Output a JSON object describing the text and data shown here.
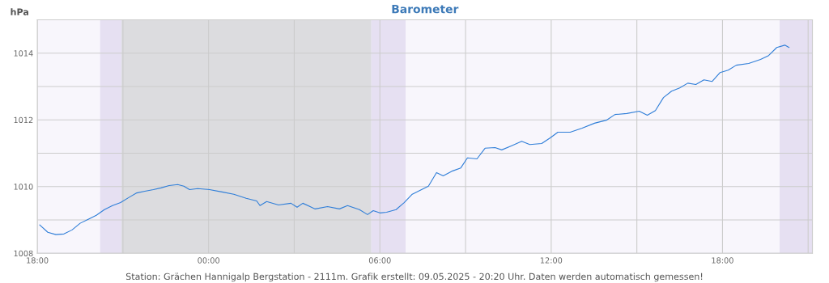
{
  "chart_data": {
    "type": "line",
    "title": "Barometer",
    "ylabel": "hPa",
    "annotations": [
      "Station: Grächen Hannigalp Bergstation - 2111m. Grafik erstellt: 09.05.2025 - 20:20 Uhr. Daten werden automatisch gemessen!"
    ],
    "x": [
      "2025-05-08T18:05",
      "2025-05-08T18:22",
      "2025-05-08T18:39",
      "2025-05-08T18:56",
      "2025-05-08T19:13",
      "2025-05-08T19:30",
      "2025-05-08T19:47",
      "2025-05-08T20:04",
      "2025-05-08T20:21",
      "2025-05-08T20:38",
      "2025-05-08T20:55",
      "2025-05-08T21:12",
      "2025-05-08T21:29",
      "2025-05-08T21:46",
      "2025-05-08T22:04",
      "2025-05-08T22:20",
      "2025-05-08T22:37",
      "2025-05-08T22:55",
      "2025-05-08T23:08",
      "2025-05-08T23:20",
      "2025-05-08T23:37",
      "2025-05-09T00:02",
      "2025-05-09T00:28",
      "2025-05-09T00:53",
      "2025-05-09T01:19",
      "2025-05-09T01:41",
      "2025-05-09T01:48",
      "2025-05-09T02:02",
      "2025-05-09T02:27",
      "2025-05-09T02:53",
      "2025-05-09T03:06",
      "2025-05-09T03:18",
      "2025-05-09T03:44",
      "2025-05-09T04:10",
      "2025-05-09T04:35",
      "2025-05-09T04:52",
      "2025-05-09T05:17",
      "2025-05-09T05:34",
      "2025-05-09T05:46",
      "2025-05-09T06:00",
      "2025-05-09T06:14",
      "2025-05-09T06:34",
      "2025-05-09T06:51",
      "2025-05-09T07:08",
      "2025-05-09T07:25",
      "2025-05-09T07:42",
      "2025-05-09T07:59",
      "2025-05-09T08:13",
      "2025-05-09T08:33",
      "2025-05-09T08:50",
      "2025-05-09T09:04",
      "2025-05-09T09:24",
      "2025-05-09T09:41",
      "2025-05-09T10:02",
      "2025-05-09T10:16",
      "2025-05-09T10:36",
      "2025-05-09T10:58",
      "2025-05-09T11:15",
      "2025-05-09T11:40",
      "2025-05-09T11:58",
      "2025-05-09T12:14",
      "2025-05-09T12:40",
      "2025-05-09T13:05",
      "2025-05-09T13:31",
      "2025-05-09T13:56",
      "2025-05-09T14:14",
      "2025-05-09T14:39",
      "2025-05-09T15:05",
      "2025-05-09T15:22",
      "2025-05-09T15:39",
      "2025-05-09T15:56",
      "2025-05-09T16:13",
      "2025-05-09T16:30",
      "2025-05-09T16:47",
      "2025-05-09T17:04",
      "2025-05-09T17:21",
      "2025-05-09T17:38",
      "2025-05-09T17:55",
      "2025-05-09T18:12",
      "2025-05-09T18:29",
      "2025-05-09T18:55",
      "2025-05-09T19:20",
      "2025-05-09T19:37",
      "2025-05-09T19:54",
      "2025-05-09T20:11",
      "2025-05-09T20:20"
    ],
    "series": [
      {
        "color": "#2f7ed8",
        "values": [
          1008.85,
          1008.63,
          1008.56,
          1008.58,
          1008.7,
          1008.9,
          1009.02,
          1009.14,
          1009.31,
          1009.43,
          1009.52,
          1009.67,
          1009.81,
          1009.86,
          1009.91,
          1009.96,
          1010.03,
          1010.06,
          1010.01,
          1009.91,
          1009.94,
          1009.91,
          1009.84,
          1009.77,
          1009.65,
          1009.57,
          1009.43,
          1009.55,
          1009.45,
          1009.5,
          1009.38,
          1009.5,
          1009.33,
          1009.4,
          1009.33,
          1009.43,
          1009.31,
          1009.16,
          1009.28,
          1009.21,
          1009.23,
          1009.31,
          1009.52,
          1009.77,
          1009.89,
          1010.01,
          1010.42,
          1010.32,
          1010.47,
          1010.56,
          1010.86,
          1010.83,
          1011.15,
          1011.17,
          1011.1,
          1011.22,
          1011.36,
          1011.26,
          1011.29,
          1011.46,
          1011.63,
          1011.63,
          1011.75,
          1011.9,
          1011.99,
          1012.16,
          1012.19,
          1012.26,
          1012.14,
          1012.28,
          1012.67,
          1012.86,
          1012.96,
          1013.1,
          1013.06,
          1013.2,
          1013.15,
          1013.42,
          1013.49,
          1013.64,
          1013.69,
          1013.81,
          1013.93,
          1014.17,
          1014.24,
          1014.17
        ]
      }
    ],
    "xlim": [
      "2025-05-08T18:00",
      "2025-05-09T21:09"
    ],
    "xticks": [
      {
        "value": "2025-05-08T18:00",
        "label": "18:00"
      },
      {
        "value": "2025-05-08T21:00",
        "label": null
      },
      {
        "value": "2025-05-09T00:00",
        "label": "00:00"
      },
      {
        "value": "2025-05-09T03:00",
        "label": null
      },
      {
        "value": "2025-05-09T06:00",
        "label": "06:00"
      },
      {
        "value": "2025-05-09T09:00",
        "label": null
      },
      {
        "value": "2025-05-09T12:00",
        "label": "12:00"
      },
      {
        "value": "2025-05-09T15:00",
        "label": null
      },
      {
        "value": "2025-05-09T18:00",
        "label": "18:00"
      },
      {
        "value": "2025-05-09T21:00",
        "label": null
      }
    ],
    "ylim": [
      1008,
      1015
    ],
    "yticks": [
      1008,
      {
        "value": 1009,
        "label": null
      },
      1010,
      {
        "value": 1011,
        "label": null
      },
      1012,
      {
        "value": 1013,
        "label": null
      },
      1014,
      {
        "value": 1015,
        "label": null
      }
    ],
    "bands": [
      {
        "axis": "x",
        "from": "2025-05-08T20:12",
        "to": "2025-05-08T20:57",
        "color": "#e6e0f2"
      },
      {
        "axis": "x",
        "from": "2025-05-08T20:57",
        "to": "2025-05-09T05:42",
        "color": "#dcdcdf"
      },
      {
        "axis": "x",
        "from": "2025-05-09T05:42",
        "to": "2025-05-09T06:54",
        "color": "#e6e0f2"
      },
      {
        "axis": "x",
        "from": "2025-05-09T20:00",
        "to": "2025-05-09T21:09",
        "color": "#e6e0f2"
      }
    ],
    "grid": true,
    "marker": "none",
    "line_style": "solid"
  }
}
